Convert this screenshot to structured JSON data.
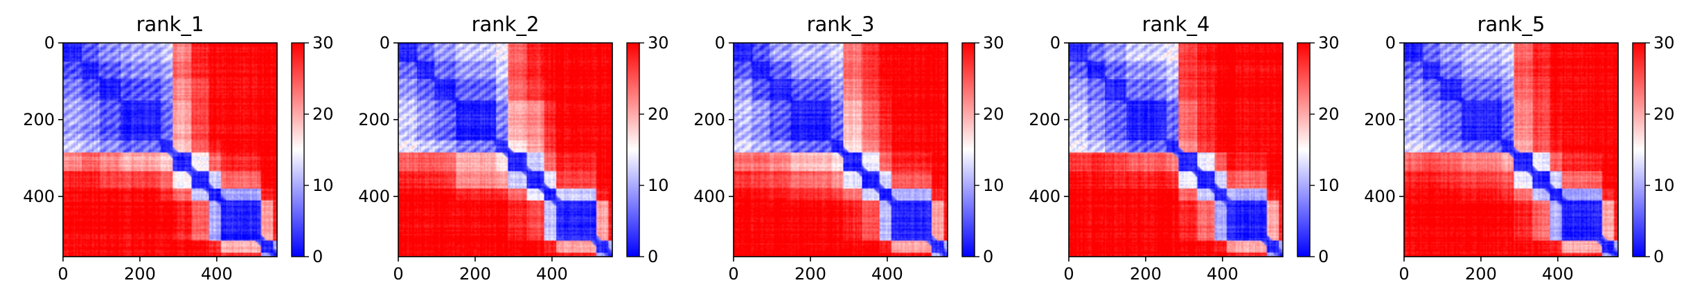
{
  "figure": {
    "colormap": "bwr",
    "colors": {
      "low": "#0000ff",
      "mid": "#ffffff",
      "high": "#ff0000",
      "axis": "#000000"
    },
    "interpolation": "bicubic-smooth",
    "range": [
      0,
      30
    ]
  },
  "chart_data": [
    {
      "type": "heatmap",
      "title": "rank_1",
      "xlabel": "",
      "ylabel": "",
      "x_ticks": [
        "0",
        "200",
        "400"
      ],
      "y_ticks": [
        "0",
        "200",
        "400"
      ],
      "colorbar_ticks": [
        "0",
        "10",
        "20",
        "30"
      ],
      "xlim": [
        0,
        557
      ],
      "ylim": [
        557,
        0
      ],
      "grid": false,
      "block_boundaries": [
        0,
        50,
        95,
        150,
        255,
        285,
        335,
        380,
        410,
        515,
        545,
        557
      ],
      "block_values": [
        [
          2,
          5,
          8,
          10,
          12,
          22,
          28,
          30,
          30,
          30,
          30
        ],
        [
          5,
          2,
          5,
          8,
          10,
          24,
          28,
          30,
          30,
          30,
          30
        ],
        [
          8,
          5,
          2,
          5,
          8,
          22,
          26,
          30,
          30,
          30,
          30
        ],
        [
          10,
          8,
          5,
          2,
          6,
          20,
          26,
          30,
          30,
          30,
          30
        ],
        [
          12,
          10,
          8,
          6,
          2,
          18,
          24,
          28,
          30,
          30,
          30
        ],
        [
          22,
          24,
          22,
          20,
          18,
          2,
          15,
          24,
          28,
          30,
          30
        ],
        [
          28,
          28,
          26,
          26,
          24,
          15,
          2,
          12,
          24,
          30,
          30
        ],
        [
          30,
          30,
          30,
          30,
          28,
          24,
          12,
          2,
          10,
          28,
          30
        ],
        [
          30,
          30,
          30,
          30,
          30,
          28,
          24,
          10,
          2,
          20,
          28
        ],
        [
          30,
          30,
          30,
          30,
          30,
          30,
          30,
          28,
          20,
          2,
          10
        ],
        [
          30,
          30,
          30,
          30,
          30,
          30,
          30,
          30,
          28,
          10,
          2
        ]
      ]
    },
    {
      "type": "heatmap",
      "title": "rank_2",
      "xlabel": "",
      "ylabel": "",
      "x_ticks": [
        "0",
        "200",
        "400"
      ],
      "y_ticks": [
        "0",
        "200",
        "400"
      ],
      "colorbar_ticks": [
        "0",
        "10",
        "20",
        "30"
      ],
      "xlim": [
        0,
        557
      ],
      "ylim": [
        557,
        0
      ],
      "grid": false,
      "block_boundaries": [
        0,
        50,
        95,
        150,
        255,
        285,
        335,
        380,
        410,
        515,
        545,
        557
      ],
      "block_values": [
        [
          2,
          6,
          9,
          12,
          14,
          24,
          28,
          30,
          30,
          30,
          30
        ],
        [
          6,
          2,
          6,
          9,
          12,
          25,
          28,
          30,
          30,
          30,
          30
        ],
        [
          9,
          6,
          2,
          6,
          10,
          24,
          27,
          30,
          30,
          30,
          30
        ],
        [
          12,
          9,
          6,
          2,
          7,
          20,
          22,
          28,
          30,
          30,
          30
        ],
        [
          14,
          12,
          10,
          7,
          2,
          16,
          20,
          27,
          30,
          30,
          30
        ],
        [
          24,
          25,
          24,
          20,
          16,
          2,
          12,
          24,
          28,
          30,
          30
        ],
        [
          28,
          28,
          27,
          22,
          20,
          12,
          2,
          14,
          26,
          30,
          30
        ],
        [
          30,
          30,
          30,
          28,
          27,
          24,
          14,
          2,
          12,
          28,
          30
        ],
        [
          30,
          30,
          30,
          30,
          30,
          28,
          26,
          12,
          2,
          20,
          28
        ],
        [
          30,
          30,
          30,
          30,
          30,
          30,
          30,
          28,
          20,
          2,
          10
        ],
        [
          30,
          30,
          30,
          30,
          30,
          30,
          30,
          30,
          28,
          10,
          2
        ]
      ]
    },
    {
      "type": "heatmap",
      "title": "rank_3",
      "xlabel": "",
      "ylabel": "",
      "x_ticks": [
        "0",
        "200",
        "400"
      ],
      "y_ticks": [
        "0",
        "200",
        "400"
      ],
      "colorbar_ticks": [
        "0",
        "10",
        "20",
        "30"
      ],
      "xlim": [
        0,
        557
      ],
      "ylim": [
        557,
        0
      ],
      "grid": false,
      "block_boundaries": [
        0,
        50,
        95,
        150,
        255,
        285,
        335,
        380,
        410,
        515,
        545,
        557
      ],
      "block_values": [
        [
          2,
          5,
          9,
          11,
          13,
          23,
          27,
          30,
          30,
          30,
          30
        ],
        [
          5,
          2,
          5,
          9,
          11,
          24,
          27,
          30,
          30,
          30,
          30
        ],
        [
          9,
          5,
          2,
          5,
          9,
          22,
          26,
          29,
          30,
          30,
          30
        ],
        [
          11,
          9,
          5,
          2,
          6,
          19,
          24,
          28,
          30,
          30,
          30
        ],
        [
          13,
          11,
          9,
          6,
          2,
          17,
          22,
          27,
          30,
          30,
          30
        ],
        [
          23,
          24,
          22,
          19,
          17,
          2,
          14,
          24,
          28,
          30,
          30
        ],
        [
          27,
          27,
          26,
          24,
          22,
          14,
          2,
          13,
          25,
          30,
          30
        ],
        [
          30,
          30,
          29,
          28,
          27,
          24,
          13,
          2,
          11,
          28,
          30
        ],
        [
          30,
          30,
          30,
          30,
          30,
          28,
          25,
          11,
          2,
          20,
          28
        ],
        [
          30,
          30,
          30,
          30,
          30,
          30,
          30,
          28,
          20,
          2,
          10
        ],
        [
          30,
          30,
          30,
          30,
          30,
          30,
          30,
          30,
          28,
          10,
          2
        ]
      ]
    },
    {
      "type": "heatmap",
      "title": "rank_4",
      "xlabel": "",
      "ylabel": "",
      "x_ticks": [
        "0",
        "200",
        "400"
      ],
      "y_ticks": [
        "0",
        "200",
        "400"
      ],
      "colorbar_ticks": [
        "0",
        "10",
        "20",
        "30"
      ],
      "xlim": [
        0,
        557
      ],
      "ylim": [
        557,
        0
      ],
      "grid": false,
      "block_boundaries": [
        0,
        50,
        95,
        150,
        255,
        285,
        335,
        380,
        410,
        515,
        545,
        557
      ],
      "block_values": [
        [
          2,
          6,
          9,
          12,
          14,
          26,
          29,
          30,
          30,
          30,
          30
        ],
        [
          6,
          2,
          6,
          9,
          12,
          27,
          29,
          30,
          30,
          30,
          30
        ],
        [
          9,
          6,
          2,
          6,
          9,
          26,
          28,
          30,
          30,
          30,
          30
        ],
        [
          12,
          9,
          6,
          2,
          6,
          24,
          28,
          30,
          30,
          30,
          30
        ],
        [
          14,
          12,
          9,
          6,
          2,
          22,
          27,
          30,
          30,
          30,
          30
        ],
        [
          26,
          27,
          26,
          24,
          22,
          2,
          14,
          24,
          28,
          30,
          30
        ],
        [
          29,
          29,
          28,
          28,
          27,
          14,
          2,
          12,
          24,
          30,
          30
        ],
        [
          30,
          30,
          30,
          30,
          30,
          24,
          12,
          2,
          10,
          28,
          30
        ],
        [
          30,
          30,
          30,
          30,
          30,
          28,
          24,
          10,
          2,
          20,
          28
        ],
        [
          30,
          30,
          30,
          30,
          30,
          30,
          30,
          28,
          20,
          2,
          10
        ],
        [
          30,
          30,
          30,
          30,
          30,
          30,
          30,
          30,
          28,
          10,
          2
        ]
      ]
    },
    {
      "type": "heatmap",
      "title": "rank_5",
      "xlabel": "",
      "ylabel": "",
      "x_ticks": [
        "0",
        "200",
        "400"
      ],
      "y_ticks": [
        "0",
        "200",
        "400"
      ],
      "colorbar_ticks": [
        "0",
        "10",
        "20",
        "30"
      ],
      "xlim": [
        0,
        557
      ],
      "ylim": [
        557,
        0
      ],
      "grid": false,
      "block_boundaries": [
        0,
        50,
        95,
        150,
        255,
        285,
        335,
        380,
        410,
        515,
        545,
        557
      ],
      "block_values": [
        [
          2,
          6,
          9,
          11,
          13,
          24,
          28,
          30,
          30,
          30,
          30
        ],
        [
          6,
          2,
          6,
          9,
          11,
          25,
          28,
          30,
          30,
          30,
          30
        ],
        [
          9,
          6,
          2,
          6,
          9,
          24,
          27,
          30,
          30,
          30,
          30
        ],
        [
          11,
          9,
          6,
          2,
          6,
          22,
          26,
          29,
          30,
          30,
          30
        ],
        [
          13,
          11,
          9,
          6,
          2,
          20,
          25,
          28,
          30,
          30,
          30
        ],
        [
          24,
          25,
          24,
          22,
          20,
          2,
          14,
          24,
          28,
          30,
          30
        ],
        [
          28,
          28,
          27,
          26,
          25,
          14,
          2,
          12,
          24,
          30,
          30
        ],
        [
          30,
          30,
          30,
          29,
          28,
          24,
          12,
          2,
          10,
          28,
          30
        ],
        [
          30,
          30,
          30,
          30,
          30,
          28,
          24,
          10,
          2,
          20,
          28
        ],
        [
          30,
          30,
          30,
          30,
          30,
          30,
          30,
          28,
          20,
          2,
          10
        ],
        [
          30,
          30,
          30,
          30,
          30,
          30,
          30,
          30,
          28,
          10,
          2
        ]
      ]
    }
  ]
}
